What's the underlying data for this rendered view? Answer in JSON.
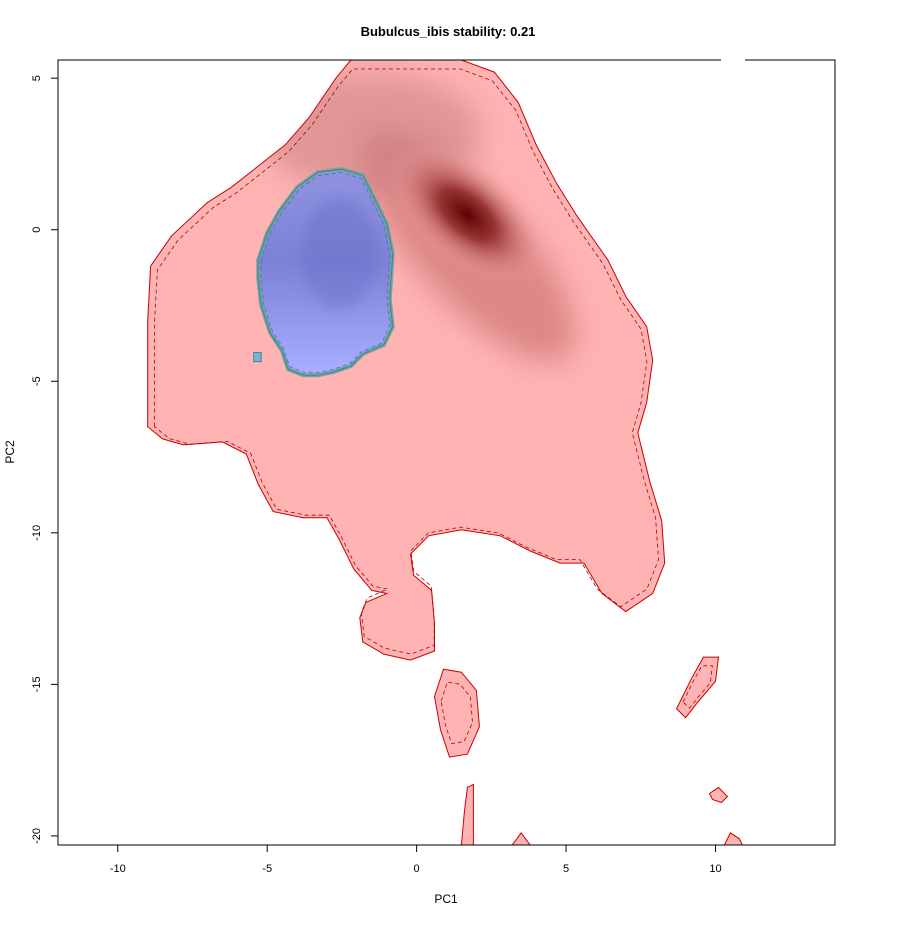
{
  "chart_data": {
    "type": "heatmap",
    "title": "Bubulcus_ibis stability: 0.21",
    "xlabel": "PC1",
    "ylabel": "PC2",
    "xlim": [
      -12,
      14
    ],
    "ylim": [
      -20.3,
      5.6
    ],
    "xticks": [
      -10,
      -5,
      0,
      5,
      10
    ],
    "yticks": [
      5,
      0,
      -5,
      -10,
      -15,
      -20
    ],
    "grid": false,
    "colors": {
      "niche_fill": "#ffb3b3",
      "niche_dark": "#5c0000",
      "niche_outline": "#cc0000",
      "overlap_fill": "#9da3ee",
      "overlap_dark": "#6b6fc7",
      "overlap_outline": "#22aa44"
    },
    "density_peak": {
      "x": 1.7,
      "y": 0.5
    },
    "niche_region_main": [
      [
        -9,
        -6.5
      ],
      [
        -9,
        -3
      ],
      [
        -8.9,
        -1.2
      ],
      [
        -8.2,
        -0.2
      ],
      [
        -7,
        0.9
      ],
      [
        -6.2,
        1.4
      ],
      [
        -5.3,
        2.1
      ],
      [
        -4.4,
        2.8
      ],
      [
        -3.6,
        3.7
      ],
      [
        -2.7,
        5.0
      ],
      [
        -2.2,
        5.6
      ],
      [
        1.5,
        5.6
      ],
      [
        2.6,
        5.2
      ],
      [
        3.4,
        4.2
      ],
      [
        4.0,
        2.8
      ],
      [
        4.7,
        1.5
      ],
      [
        5.4,
        0.4
      ],
      [
        6.4,
        -1.0
      ],
      [
        7.0,
        -2.2
      ],
      [
        7.7,
        -3.2
      ],
      [
        7.9,
        -4.3
      ],
      [
        7.7,
        -5.7
      ],
      [
        7.4,
        -6.7
      ],
      [
        7.8,
        -8.3
      ],
      [
        8.2,
        -9.6
      ],
      [
        8.3,
        -11.0
      ],
      [
        7.9,
        -12.0
      ],
      [
        7.0,
        -12.6
      ],
      [
        6.2,
        -12.0
      ],
      [
        5.6,
        -11.0
      ],
      [
        4.8,
        -11.0
      ],
      [
        3.8,
        -10.6
      ],
      [
        2.8,
        -10.1
      ],
      [
        1.5,
        -9.9
      ],
      [
        0.4,
        -10.1
      ],
      [
        -0.2,
        -10.7
      ],
      [
        -0.1,
        -11.4
      ],
      [
        0.5,
        -11.9
      ],
      [
        0.6,
        -13.0
      ],
      [
        0.6,
        -13.9
      ],
      [
        -0.2,
        -14.2
      ],
      [
        -1.1,
        -14.0
      ],
      [
        -1.8,
        -13.6
      ],
      [
        -1.9,
        -12.8
      ],
      [
        -1.7,
        -12.3
      ],
      [
        -1.0,
        -12.0
      ],
      [
        -1.5,
        -11.9
      ],
      [
        -2.1,
        -11.2
      ],
      [
        -2.6,
        -10.2
      ],
      [
        -3.0,
        -9.5
      ],
      [
        -3.8,
        -9.5
      ],
      [
        -4.8,
        -9.3
      ],
      [
        -5.3,
        -8.4
      ],
      [
        -5.7,
        -7.4
      ],
      [
        -6.5,
        -7.0
      ],
      [
        -7.8,
        -7.1
      ],
      [
        -8.5,
        -6.9
      ]
    ],
    "niche_region_islands": [
      [
        [
          0.6,
          -15.4
        ],
        [
          0.9,
          -14.5
        ],
        [
          1.5,
          -14.6
        ],
        [
          2.0,
          -15.2
        ],
        [
          2.1,
          -16.4
        ],
        [
          1.7,
          -17.3
        ],
        [
          1.1,
          -17.4
        ],
        [
          0.8,
          -16.5
        ]
      ],
      [
        [
          8.7,
          -15.8
        ],
        [
          9.2,
          -14.8
        ],
        [
          9.6,
          -14.1
        ],
        [
          10.1,
          -14.1
        ],
        [
          10.0,
          -14.9
        ],
        [
          9.4,
          -15.6
        ],
        [
          9.0,
          -16.1
        ]
      ],
      [
        [
          1.5,
          -20.3
        ],
        [
          1.6,
          -19.2
        ],
        [
          1.7,
          -18.4
        ],
        [
          1.9,
          -18.3
        ],
        [
          1.9,
          -19.3
        ],
        [
          1.9,
          -20.3
        ]
      ],
      [
        [
          3.2,
          -20.3
        ],
        [
          3.5,
          -19.9
        ],
        [
          3.8,
          -20.3
        ]
      ],
      [
        [
          9.8,
          -18.6
        ],
        [
          10.1,
          -18.4
        ],
        [
          10.4,
          -18.7
        ],
        [
          10.2,
          -18.9
        ],
        [
          9.9,
          -18.8
        ]
      ],
      [
        [
          10.3,
          -20.3
        ],
        [
          10.5,
          -19.9
        ],
        [
          10.8,
          -20.1
        ],
        [
          10.9,
          -20.3
        ]
      ]
    ],
    "overlap_region": [
      [
        -5.3,
        -1.0
      ],
      [
        -5.0,
        -0.1
      ],
      [
        -4.6,
        0.6
      ],
      [
        -4.0,
        1.4
      ],
      [
        -3.3,
        1.9
      ],
      [
        -2.5,
        2.0
      ],
      [
        -1.8,
        1.8
      ],
      [
        -1.4,
        1.0
      ],
      [
        -1.0,
        0.2
      ],
      [
        -0.8,
        -0.8
      ],
      [
        -0.9,
        -2.3
      ],
      [
        -0.8,
        -3.2
      ],
      [
        -1.1,
        -3.8
      ],
      [
        -1.8,
        -4.1
      ],
      [
        -2.2,
        -4.5
      ],
      [
        -2.8,
        -4.7
      ],
      [
        -3.3,
        -4.8
      ],
      [
        -3.8,
        -4.8
      ],
      [
        -4.3,
        -4.6
      ],
      [
        -4.5,
        -4.0
      ],
      [
        -4.9,
        -3.4
      ],
      [
        -5.2,
        -2.5
      ],
      [
        -5.3,
        -1.6
      ]
    ],
    "overlap_island": [
      [
        -5.45,
        -4.35
      ],
      [
        -5.2,
        -4.35
      ],
      [
        -5.2,
        -4.05
      ],
      [
        -5.45,
        -4.05
      ]
    ]
  }
}
